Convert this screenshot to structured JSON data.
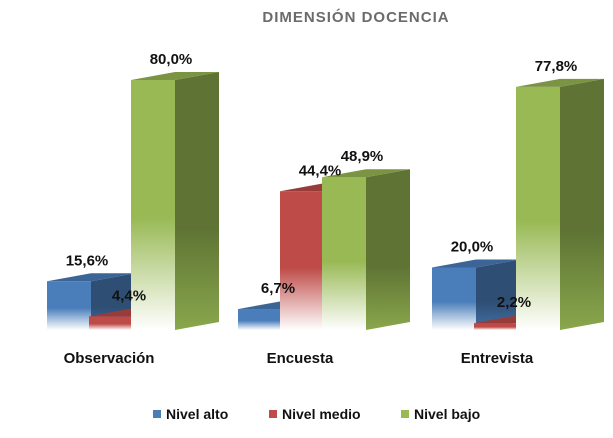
{
  "chart_data": {
    "type": "bar",
    "title": "DIMENSIÓN DOCENCIA",
    "categories": [
      "Observación",
      "Encuesta",
      "Entrevista"
    ],
    "series": [
      {
        "name": "Nivel alto",
        "values": [
          15.6,
          6.7,
          20.0
        ],
        "labels": [
          "15,6%",
          "6,7%",
          "20,0%"
        ],
        "color": "#4a7ebb"
      },
      {
        "name": "Nivel medio",
        "values": [
          4.4,
          44.4,
          2.2
        ],
        "labels": [
          "4,4%",
          "44,4%",
          "2,2%"
        ],
        "color": "#be4b48"
      },
      {
        "name": "Nivel bajo",
        "values": [
          80.0,
          48.9,
          77.8
        ],
        "labels": [
          "80,0%",
          "48,9%",
          "77,8%"
        ],
        "color": "#98b954"
      }
    ],
    "ylim": [
      0,
      100
    ],
    "grid": false,
    "legend": "bottom",
    "style": "3d-bar"
  }
}
